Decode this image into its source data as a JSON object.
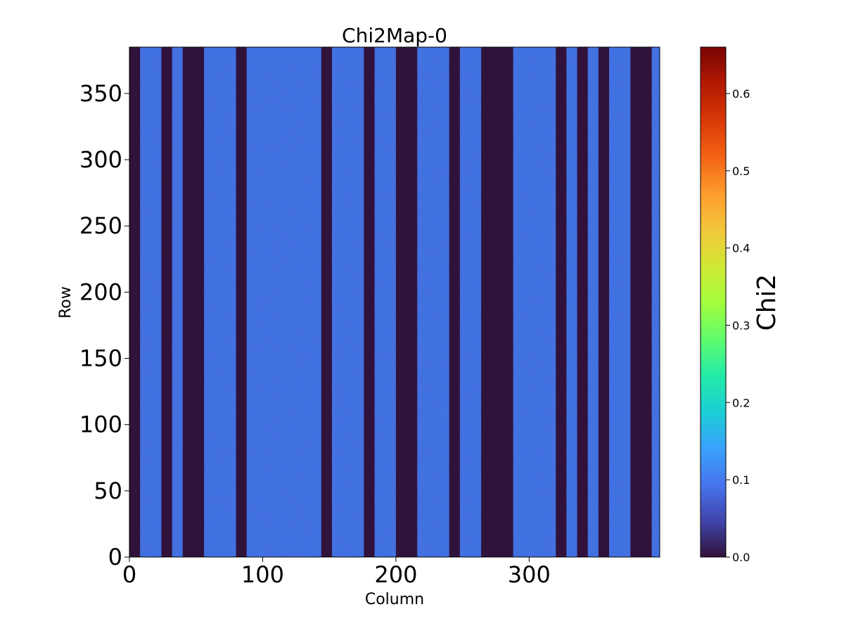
{
  "chart_data": {
    "type": "heatmap",
    "title": "Chi2Map-0",
    "xlabel": "Column",
    "ylabel": "Row",
    "xlim": [
      0,
      398
    ],
    "ylim": [
      0,
      385
    ],
    "x_ticks": [
      0,
      100,
      200,
      300
    ],
    "x_tick_labels": [
      "0",
      "100",
      "200",
      "300"
    ],
    "y_ticks": [
      0,
      50,
      100,
      150,
      200,
      250,
      300,
      350
    ],
    "y_tick_labels": [
      "0",
      "50",
      "100",
      "150",
      "200",
      "250",
      "300",
      "350"
    ],
    "colorbar": {
      "label": "Chi2",
      "range": [
        0.0,
        0.66
      ],
      "ticks": [
        0.0,
        0.1,
        0.2,
        0.3,
        0.4,
        0.5,
        0.6
      ],
      "tick_labels": [
        "0.0",
        "0.1",
        "0.2",
        "0.3",
        "0.4",
        "0.5",
        "0.6"
      ],
      "colormap": "turbo",
      "colormap_stops": [
        "#30123b",
        "#4145ab",
        "#4675ed",
        "#39a2fc",
        "#1bcfd4",
        "#24eca6",
        "#61fc6c",
        "#a4fc3b",
        "#d1e834",
        "#f3c63a",
        "#fe9b2d",
        "#f36315",
        "#d93806",
        "#b11901",
        "#7a0403"
      ]
    },
    "background_value": 0.08,
    "zero_columns": [
      [
        0,
        8
      ],
      [
        24,
        32
      ],
      [
        40,
        56
      ],
      [
        80,
        88
      ],
      [
        144,
        152
      ],
      [
        176,
        184
      ],
      [
        200,
        216
      ],
      [
        240,
        248
      ],
      [
        264,
        288
      ],
      [
        320,
        328
      ],
      [
        336,
        344
      ],
      [
        352,
        360
      ],
      [
        376,
        392
      ]
    ],
    "grid": false
  }
}
